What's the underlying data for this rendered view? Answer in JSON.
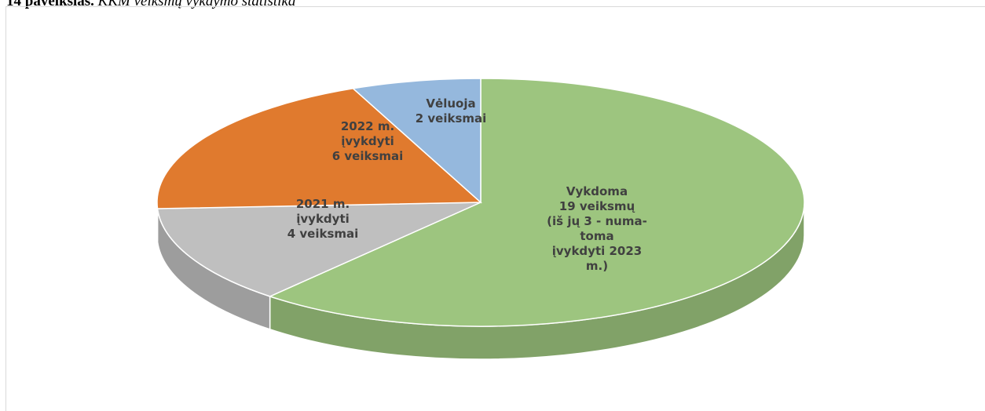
{
  "caption": {
    "number": "14 paveikslas.",
    "text": "KKM veiksmų vykdymo statistika"
  },
  "chart_data": {
    "type": "pie",
    "labels": [
      [
        "Vykdoma",
        "19 veiksmų",
        "(iš jų 3 - numa-",
        "toma",
        "įvykdyti 2023",
        "m.)"
      ],
      [
        "2021 m.",
        "įvykdyti",
        "4 veiksmai"
      ],
      [
        "2022 m.",
        "įvykdyti",
        "6 veiksmai"
      ],
      [
        "Vėluoja",
        "2 veiksmai"
      ]
    ],
    "values": [
      19,
      4,
      6,
      2
    ],
    "colors": [
      "#9dc57f",
      "#bfbfbf",
      "#e07a2e",
      "#95b8dd"
    ]
  }
}
